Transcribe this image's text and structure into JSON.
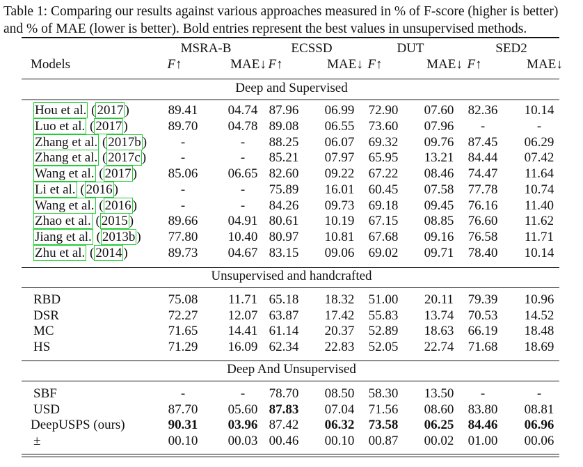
{
  "caption": {
    "line1": "Table 1: Comparing our results against various approaches measured in % of F-score (higher is better)",
    "line2": "and % of MAE (lower is better). Bold entries represent the best values in unsupervised methods."
  },
  "datasets": [
    "MSRA-B",
    "ECSSD",
    "DUT",
    "SED2"
  ],
  "header": {
    "models": "Models",
    "metrics": [
      "F↑",
      "MAE↓",
      "F↑",
      "MAE↓",
      "F↑",
      "MAE↓",
      "F↑",
      "MAE↓"
    ]
  },
  "groups": [
    {
      "title": "Deep and Supervised",
      "rows": [
        {
          "name": "Hou et al.",
          "cite": "2017",
          "values": [
            "89.41",
            "04.74",
            "87.96",
            "06.99",
            "72.90",
            "07.60",
            "82.36",
            "10.14"
          ],
          "bold": []
        },
        {
          "name": "Luo et al.",
          "cite": "2017",
          "values": [
            "89.70",
            "04.78",
            "89.08",
            "06.55",
            "73.60",
            "07.96",
            "-",
            "-"
          ],
          "bold": []
        },
        {
          "name": "Zhang et al.",
          "cite": "2017b",
          "values": [
            "-",
            "-",
            "88.25",
            "06.07",
            "69.32",
            "09.76",
            "87.45",
            "06.29"
          ],
          "bold": []
        },
        {
          "name": "Zhang et al.",
          "cite": "2017c",
          "values": [
            "-",
            "-",
            "85.21",
            "07.97",
            "65.95",
            "13.21",
            "84.44",
            "07.42"
          ],
          "bold": []
        },
        {
          "name": "Wang et al.",
          "cite": "2017",
          "values": [
            "85.06",
            "06.65",
            "82.60",
            "09.22",
            "67.22",
            "08.46",
            "74.47",
            "11.64"
          ],
          "bold": []
        },
        {
          "name": "Li et al.",
          "cite": "2016",
          "values": [
            "-",
            "-",
            "75.89",
            "16.01",
            "60.45",
            "07.58",
            "77.78",
            "10.74"
          ],
          "bold": []
        },
        {
          "name": "Wang et al.",
          "cite": "2016",
          "values": [
            "-",
            "-",
            "84.26",
            "09.73",
            "69.18",
            "09.45",
            "76.16",
            "11.40"
          ],
          "bold": []
        },
        {
          "name": "Zhao et al.",
          "cite": "2015",
          "values": [
            "89.66",
            "04.91",
            "80.61",
            "10.19",
            "67.15",
            "08.85",
            "76.60",
            "11.62"
          ],
          "bold": []
        },
        {
          "name": "Jiang et al.",
          "cite": "2013b",
          "values": [
            "77.80",
            "10.40",
            "80.97",
            "10.81",
            "67.68",
            "09.16",
            "76.58",
            "11.71"
          ],
          "bold": []
        },
        {
          "name": "Zhu et al.",
          "cite": "2014",
          "values": [
            "89.73",
            "04.67",
            "83.15",
            "09.06",
            "69.02",
            "09.71",
            "78.40",
            "10.14"
          ],
          "bold": []
        }
      ]
    },
    {
      "title": "Unsupervised and handcrafted",
      "rows": [
        {
          "name": "RBD",
          "values": [
            "75.08",
            "11.71",
            "65.18",
            "18.32",
            "51.00",
            "20.11",
            "79.39",
            "10.96"
          ],
          "bold": []
        },
        {
          "name": "DSR",
          "values": [
            "72.27",
            "12.07",
            "63.87",
            "17.42",
            "55.83",
            "13.74",
            "70.53",
            "14.52"
          ],
          "bold": []
        },
        {
          "name": "MC",
          "values": [
            "71.65",
            "14.41",
            "61.14",
            "20.37",
            "52.89",
            "18.63",
            "66.19",
            "18.48"
          ],
          "bold": []
        },
        {
          "name": "HS",
          "values": [
            "71.29",
            "16.09",
            "62.34",
            "22.83",
            "52.05",
            "22.74",
            "71.68",
            "18.69"
          ],
          "bold": []
        }
      ]
    },
    {
      "title": "Deep And Unsupervised",
      "rows": [
        {
          "name": "SBF",
          "values": [
            "-",
            "-",
            "78.70",
            "08.50",
            "58.30",
            "13.50",
            "-",
            "-"
          ],
          "bold": []
        },
        {
          "name": "USD",
          "values": [
            "87.70",
            "05.60",
            "87.83",
            "07.04",
            "71.56",
            "08.60",
            "83.80",
            "08.81"
          ],
          "bold": [
            2
          ]
        },
        {
          "name": "DeepUSPS (ours)",
          "values": [
            "90.31",
            "03.96",
            "87.42",
            "06.32",
            "73.58",
            "06.25",
            "84.46",
            "06.96"
          ],
          "bold": [
            0,
            1,
            3,
            4,
            5,
            6,
            7
          ]
        },
        {
          "name": "±",
          "values": [
            "00.10",
            "00.03",
            "00.46",
            "00.10",
            "00.87",
            "00.02",
            "01.00",
            "00.06"
          ],
          "bold": []
        }
      ]
    }
  ]
}
